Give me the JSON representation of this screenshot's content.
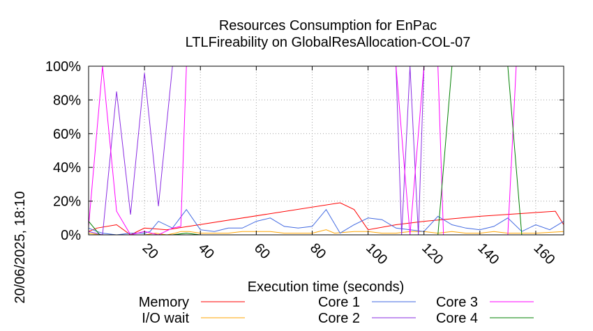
{
  "chart_data": {
    "type": "line",
    "title": "Resources Consumption for EnPac",
    "subtitle": "LTLFireability on GlobalResAllocation-COL-07",
    "xlabel": "Execution time (seconds)",
    "ylabel": "",
    "side_label": "20/06/2025, 18:10",
    "xlim": [
      0,
      170
    ],
    "ylim": [
      0,
      100
    ],
    "x_ticks": [
      20,
      40,
      60,
      80,
      100,
      120,
      140,
      160
    ],
    "y_ticks": [
      0,
      20,
      40,
      60,
      80,
      100
    ],
    "y_tick_labels": [
      "0%",
      "20%",
      "40%",
      "60%",
      "80%",
      "100%"
    ],
    "grid": true,
    "legend_position": "bottom",
    "series": [
      {
        "name": "Memory",
        "color": "#ff0000",
        "points": [
          [
            0,
            2
          ],
          [
            3,
            4
          ],
          [
            10,
            6
          ],
          [
            15,
            0
          ],
          [
            20,
            4
          ],
          [
            28,
            3
          ],
          [
            90,
            19
          ],
          [
            95,
            15
          ],
          [
            100,
            3
          ],
          [
            110,
            6
          ],
          [
            120,
            8
          ],
          [
            140,
            11
          ],
          [
            167,
            14
          ],
          [
            170,
            6
          ]
        ]
      },
      {
        "name": "I/O wait",
        "color": "#ffa500",
        "points": [
          [
            0,
            1
          ],
          [
            4,
            0
          ],
          [
            20,
            0
          ],
          [
            24,
            1
          ],
          [
            28,
            0
          ],
          [
            31,
            1
          ],
          [
            33,
            2
          ],
          [
            36,
            2
          ],
          [
            40,
            1
          ],
          [
            50,
            1
          ],
          [
            55,
            2
          ],
          [
            65,
            2
          ],
          [
            70,
            1
          ],
          [
            80,
            1
          ],
          [
            85,
            3
          ],
          [
            88,
            1
          ],
          [
            95,
            2
          ],
          [
            100,
            2
          ],
          [
            105,
            1
          ],
          [
            110,
            1
          ],
          [
            115,
            2
          ],
          [
            120,
            2
          ],
          [
            125,
            1
          ],
          [
            130,
            2
          ],
          [
            135,
            1
          ],
          [
            140,
            1
          ],
          [
            145,
            2
          ],
          [
            150,
            1
          ],
          [
            160,
            1
          ],
          [
            170,
            2
          ]
        ]
      },
      {
        "name": "Core 1",
        "color": "#4169e1",
        "points": [
          [
            0,
            4
          ],
          [
            3,
            2
          ],
          [
            5,
            1
          ],
          [
            10,
            0
          ],
          [
            15,
            1
          ],
          [
            20,
            1
          ],
          [
            22,
            2
          ],
          [
            25,
            8
          ],
          [
            30,
            4
          ],
          [
            35,
            15
          ],
          [
            40,
            3
          ],
          [
            45,
            2
          ],
          [
            50,
            4
          ],
          [
            55,
            4
          ],
          [
            60,
            8
          ],
          [
            65,
            10
          ],
          [
            70,
            5
          ],
          [
            75,
            4
          ],
          [
            80,
            5
          ],
          [
            85,
            15
          ],
          [
            90,
            1
          ],
          [
            95,
            6
          ],
          [
            100,
            10
          ],
          [
            105,
            9
          ],
          [
            110,
            4
          ],
          [
            115,
            3
          ],
          [
            120,
            2
          ],
          [
            125,
            11
          ],
          [
            130,
            6
          ],
          [
            135,
            4
          ],
          [
            140,
            3
          ],
          [
            145,
            5
          ],
          [
            150,
            10
          ],
          [
            155,
            2
          ],
          [
            160,
            6
          ],
          [
            165,
            3
          ],
          [
            170,
            8
          ]
        ]
      },
      {
        "name": "Core 2",
        "color": "#8a2be2",
        "points": [
          [
            0,
            2
          ],
          [
            5,
            0
          ],
          [
            10,
            85
          ],
          [
            15,
            12
          ],
          [
            20,
            96
          ],
          [
            25,
            17
          ],
          [
            30,
            100
          ],
          [
            33,
            100
          ],
          [
            35,
            100
          ],
          [
            40,
            100
          ],
          [
            45,
            100
          ],
          [
            50,
            100
          ],
          [
            55,
            100
          ],
          [
            60,
            100
          ],
          [
            65,
            100
          ],
          [
            70,
            100
          ],
          [
            75,
            100
          ],
          [
            80,
            100
          ],
          [
            85,
            100
          ],
          [
            90,
            100
          ],
          [
            95,
            100
          ],
          [
            100,
            100
          ],
          [
            105,
            100
          ],
          [
            110,
            100
          ],
          [
            112,
            0
          ],
          [
            115,
            100
          ],
          [
            118,
            0
          ],
          [
            120,
            100
          ],
          [
            125,
            100
          ],
          [
            130,
            100
          ],
          [
            135,
            100
          ],
          [
            140,
            100
          ],
          [
            145,
            100
          ],
          [
            150,
            100
          ],
          [
            155,
            100
          ],
          [
            160,
            100
          ],
          [
            165,
            100
          ],
          [
            170,
            100
          ]
        ]
      },
      {
        "name": "Core 3",
        "color": "#ff00ff",
        "points": [
          [
            0,
            5
          ],
          [
            5,
            100
          ],
          [
            10,
            14
          ],
          [
            15,
            0
          ],
          [
            20,
            2
          ],
          [
            25,
            0
          ],
          [
            30,
            4
          ],
          [
            33,
            5
          ],
          [
            35,
            100
          ],
          [
            40,
            100
          ],
          [
            45,
            100
          ],
          [
            50,
            100
          ],
          [
            55,
            100
          ],
          [
            60,
            100
          ],
          [
            65,
            100
          ],
          [
            70,
            100
          ],
          [
            75,
            100
          ],
          [
            80,
            100
          ],
          [
            85,
            100
          ],
          [
            90,
            100
          ],
          [
            95,
            100
          ],
          [
            100,
            100
          ],
          [
            105,
            100
          ],
          [
            110,
            100
          ],
          [
            115,
            0
          ],
          [
            120,
            100
          ],
          [
            125,
            100
          ],
          [
            127,
            0
          ],
          [
            130,
            0
          ],
          [
            135,
            0
          ],
          [
            140,
            0
          ],
          [
            145,
            0
          ],
          [
            150,
            0
          ],
          [
            153,
            100
          ],
          [
            155,
            100
          ],
          [
            160,
            100
          ],
          [
            165,
            100
          ],
          [
            170,
            100
          ]
        ]
      },
      {
        "name": "Core 4",
        "color": "#008000",
        "points": [
          [
            0,
            8
          ],
          [
            4,
            0
          ],
          [
            10,
            0
          ],
          [
            20,
            0
          ],
          [
            30,
            0
          ],
          [
            35,
            1
          ],
          [
            40,
            0
          ],
          [
            50,
            0
          ],
          [
            60,
            0
          ],
          [
            70,
            0
          ],
          [
            80,
            0
          ],
          [
            90,
            0
          ],
          [
            100,
            0
          ],
          [
            110,
            0
          ],
          [
            120,
            0
          ],
          [
            125,
            0
          ],
          [
            130,
            100
          ],
          [
            135,
            100
          ],
          [
            140,
            100
          ],
          [
            145,
            100
          ],
          [
            150,
            100
          ],
          [
            155,
            0
          ],
          [
            160,
            0
          ],
          [
            170,
            0
          ]
        ]
      }
    ]
  }
}
